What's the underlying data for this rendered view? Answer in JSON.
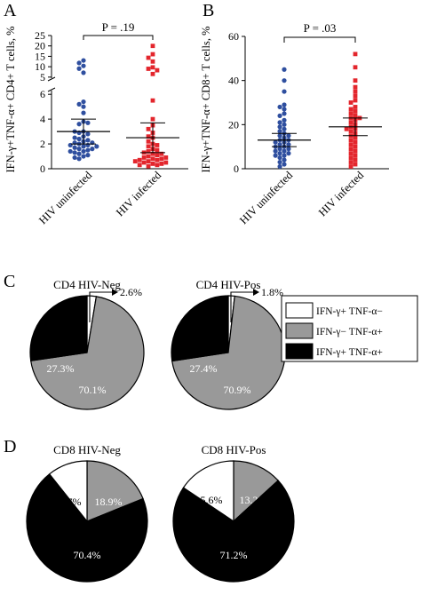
{
  "chart_data": [
    {
      "panel": "A",
      "type": "scatter",
      "ylabel": "IFN-γ+TNF-α+ CD4+ T cells, %",
      "categories": [
        "HIV uninfected",
        "HIV infected"
      ],
      "broken_axis": true,
      "yticks_lower": [
        "0",
        "2",
        "4",
        "6"
      ],
      "yticks_upper": [
        "5",
        "10",
        "15",
        "20",
        "25"
      ],
      "ylim_lower": [
        0,
        6.3
      ],
      "ylim_upper": [
        4.5,
        25
      ],
      "p_value": "P = .19",
      "series": [
        {
          "color": "#2f4f9f",
          "mean": 3.0,
          "ci": [
            2.0,
            4.0
          ],
          "values": [
            13.0,
            11.8,
            10.4,
            9.1,
            7.1,
            5.4,
            5.0,
            5.2,
            4.5,
            3.8,
            3.6,
            3.7,
            3.0,
            2.9,
            3.0,
            2.8,
            2.6,
            2.4,
            2.3,
            2.5,
            2.2,
            2.1,
            2.0,
            2.1,
            1.9,
            1.8,
            1.9,
            1.7,
            1.8,
            1.6,
            1.5,
            1.6,
            1.4,
            1.4,
            1.3,
            1.2,
            1.1,
            1.0,
            0.9,
            0.8
          ]
        },
        {
          "color": "#e3262d",
          "mean": 2.5,
          "ci": [
            1.3,
            3.7
          ],
          "values": [
            20.0,
            16.0,
            14.3,
            12.5,
            9.7,
            9.0,
            8.3,
            6.5,
            5.5,
            4.0,
            3.5,
            3.2,
            2.9,
            2.6,
            2.5,
            2.2,
            2.0,
            1.9,
            1.8,
            1.6,
            1.5,
            1.4,
            1.3,
            1.2,
            1.2,
            1.1,
            1.0,
            0.9,
            0.9,
            0.8,
            0.8,
            0.7,
            0.7,
            0.6,
            0.6,
            0.5,
            0.5,
            0.4,
            0.4,
            0.3,
            0.3,
            0.2
          ]
        }
      ]
    },
    {
      "panel": "B",
      "type": "scatter",
      "ylabel": "IFN-γ+TNF-α+ CD8+ T cells, %",
      "categories": [
        "HIV uninfected",
        "HIV infected"
      ],
      "yticks": [
        "0",
        "20",
        "40",
        "60"
      ],
      "ylim": [
        0,
        60
      ],
      "p_value": "P = .03",
      "series": [
        {
          "color": "#2f4f9f",
          "mean": 13.0,
          "ci": [
            10.0,
            16.0
          ],
          "values": [
            45,
            40,
            35,
            29,
            28,
            27,
            25,
            24,
            22,
            21,
            20,
            19,
            18,
            17,
            16,
            15,
            15,
            14,
            13,
            13,
            12,
            12,
            11,
            11,
            10,
            10,
            9,
            9,
            8,
            8,
            7,
            7,
            6,
            6,
            5,
            4,
            3,
            2,
            1
          ]
        },
        {
          "color": "#e3262d",
          "mean": 19.0,
          "ci": [
            15.0,
            23.0
          ],
          "values": [
            52,
            46,
            40,
            37,
            35,
            33,
            31,
            30,
            28,
            27,
            26,
            25,
            24,
            23,
            23,
            22,
            21,
            20,
            19,
            18,
            18,
            17,
            16,
            15,
            14,
            13,
            12,
            11,
            10,
            9,
            8,
            7,
            6,
            5,
            4,
            3,
            2,
            1
          ]
        }
      ]
    },
    {
      "panel": "C",
      "type": "pie",
      "charts": [
        {
          "title": "CD4 HIV-Neg",
          "slices": [
            {
              "label": "",
              "value": 2.6,
              "color": "#ffffff",
              "callout": "2.6%"
            },
            {
              "label": "70.1%",
              "value": 70.1,
              "color": "#999999"
            },
            {
              "label": "27.3%",
              "value": 27.3,
              "color": "#000000"
            }
          ]
        },
        {
          "title": "CD4 HIV-Pos",
          "slices": [
            {
              "label": "",
              "value": 1.8,
              "color": "#ffffff",
              "callout": "1.8%"
            },
            {
              "label": "70.9%",
              "value": 70.9,
              "color": "#999999"
            },
            {
              "label": "27.4%",
              "value": 27.4,
              "color": "#000000"
            }
          ]
        }
      ],
      "legend": [
        {
          "label": "IFN-γ+ TNF-α−",
          "color": "#ffffff"
        },
        {
          "label": "IFN-γ− TNF-α+",
          "color": "#999999"
        },
        {
          "label": "IFN-γ+ TNF-α+",
          "color": "#000000"
        }
      ]
    },
    {
      "panel": "D",
      "type": "pie",
      "charts": [
        {
          "title": "CD8 HIV-Neg",
          "slices": [
            {
              "label": "18.9%",
              "value": 18.9,
              "color": "#999999"
            },
            {
              "label": "70.4%",
              "value": 70.4,
              "color": "#000000"
            },
            {
              "label": "10.7%",
              "value": 10.7,
              "color": "#ffffff"
            }
          ]
        },
        {
          "title": "CD8 HIV-Pos",
          "slices": [
            {
              "label": "13.2%",
              "value": 13.2,
              "color": "#999999"
            },
            {
              "label": "71.2%",
              "value": 71.2,
              "color": "#000000"
            },
            {
              "label": "15.6%",
              "value": 15.6,
              "color": "#ffffff"
            }
          ]
        }
      ]
    }
  ]
}
